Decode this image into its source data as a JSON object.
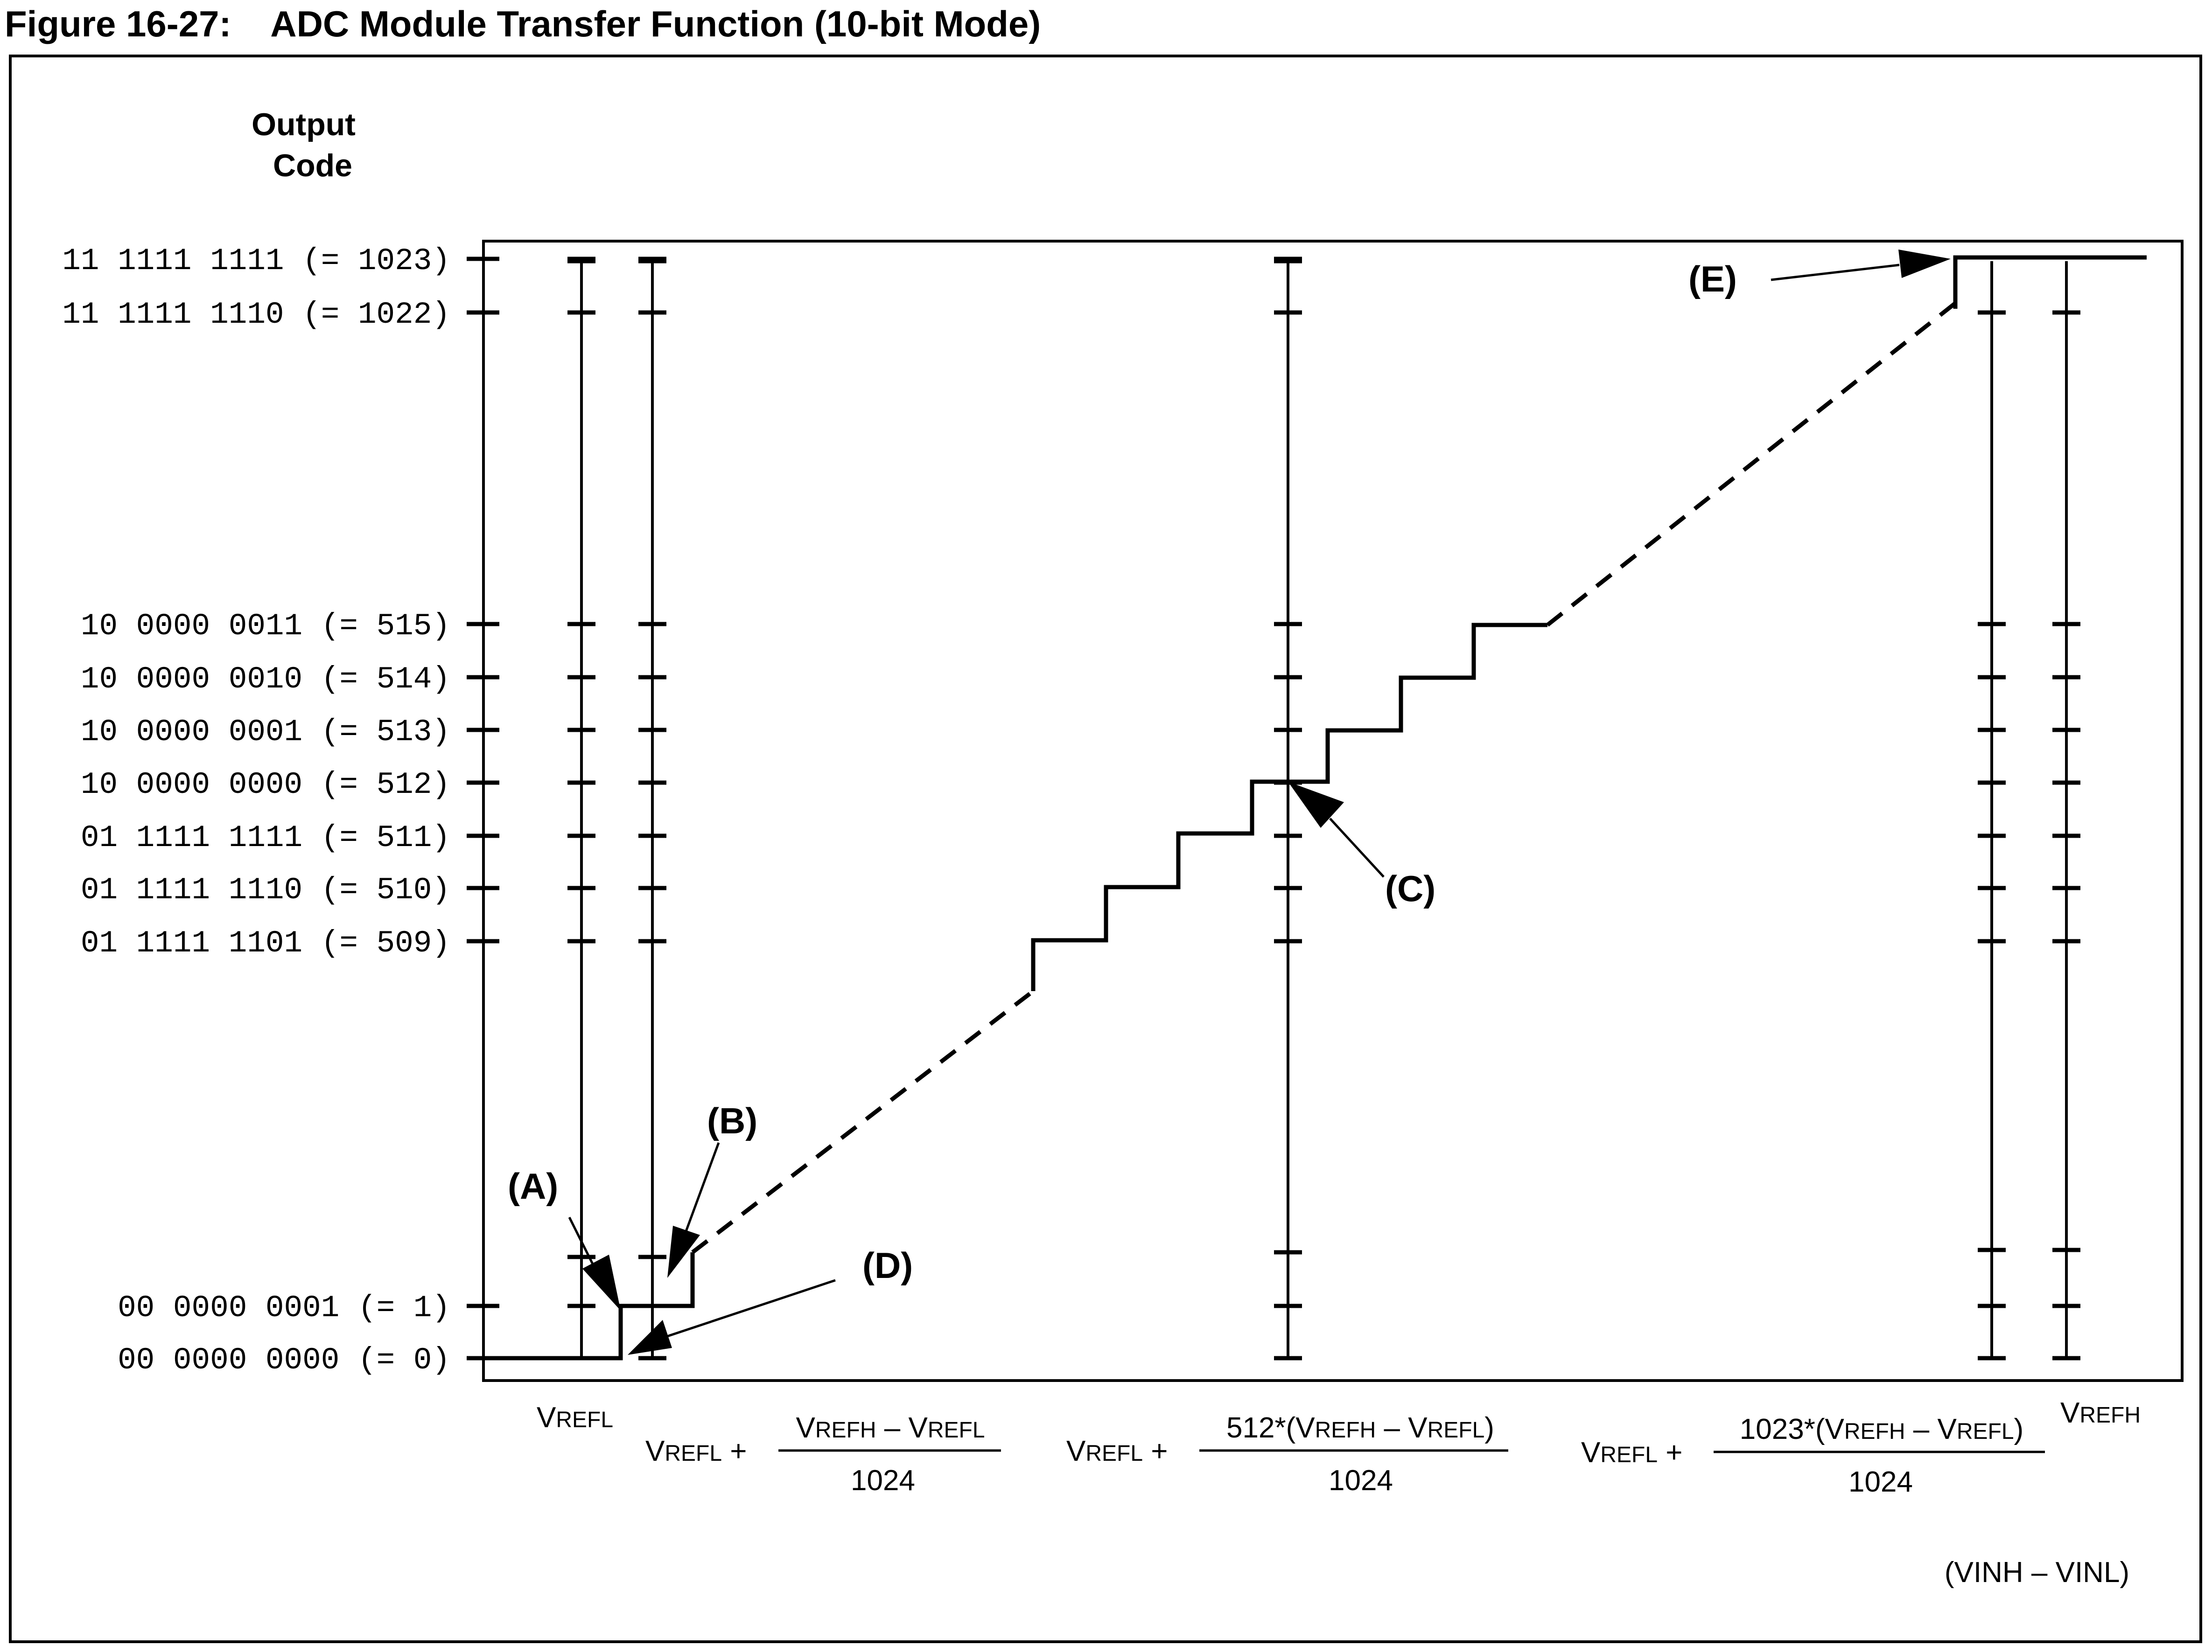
{
  "title": "Figure 16-27:    ADC Module Transfer Function (10-bit Mode)",
  "y_axis_title": [
    "Output",
    "Code"
  ],
  "y_codes": [
    {
      "label": "11 1111 1111 (= 1023)",
      "code": 1023
    },
    {
      "label": "11 1111 1110 (= 1022)",
      "code": 1022
    },
    {
      "label": "10 0000 0011 (= 515)",
      "code": 515
    },
    {
      "label": "10 0000 0010 (= 514)",
      "code": 514
    },
    {
      "label": "10 0000 0001 (= 513)",
      "code": 513
    },
    {
      "label": "10 0000 0000 (= 512)",
      "code": 512
    },
    {
      "label": "01 1111 1111 (= 511)",
      "code": 511
    },
    {
      "label": "01 1111 1110 (= 510)",
      "code": 510
    },
    {
      "label": "01 1111 1101 (= 509)",
      "code": 509
    },
    {
      "label": "00 0000 0001 (= 1)",
      "code": 1
    },
    {
      "label": "00 0000 0000 (= 0)",
      "code": 0
    }
  ],
  "x_labels": {
    "vrefl": {
      "cap": "V",
      "sub": "REFL"
    },
    "one_lsb": {
      "prefix_cap": "V",
      "prefix_sub": "REFL",
      "plus": "+",
      "num": [
        [
          "V",
          "REFH"
        ],
        [
          " – ",
          ""
        ],
        [
          "V",
          "REFL"
        ]
      ],
      "den": "1024"
    },
    "half": {
      "prefix_cap": "V",
      "prefix_sub": "REFL",
      "plus": "+",
      "num": [
        [
          "512*(V",
          "REFH"
        ],
        [
          " – V",
          "REFL"
        ],
        [
          ")",
          ""
        ]
      ],
      "den": "1024"
    },
    "full": {
      "prefix_cap": "V",
      "prefix_sub": "REFL",
      "plus": "+",
      "num": [
        [
          "1023*(V",
          "REFH"
        ],
        [
          " – V",
          "REFL"
        ],
        [
          ")",
          ""
        ]
      ],
      "den": "1024"
    },
    "vrefh": {
      "cap": "V",
      "sub": "REFH"
    }
  },
  "x_axis_title": "(VINH – VINL)",
  "callouts": {
    "A": "(A)",
    "B": "(B)",
    "C": "(C)",
    "D": "(D)",
    "E": "(E)"
  }
}
